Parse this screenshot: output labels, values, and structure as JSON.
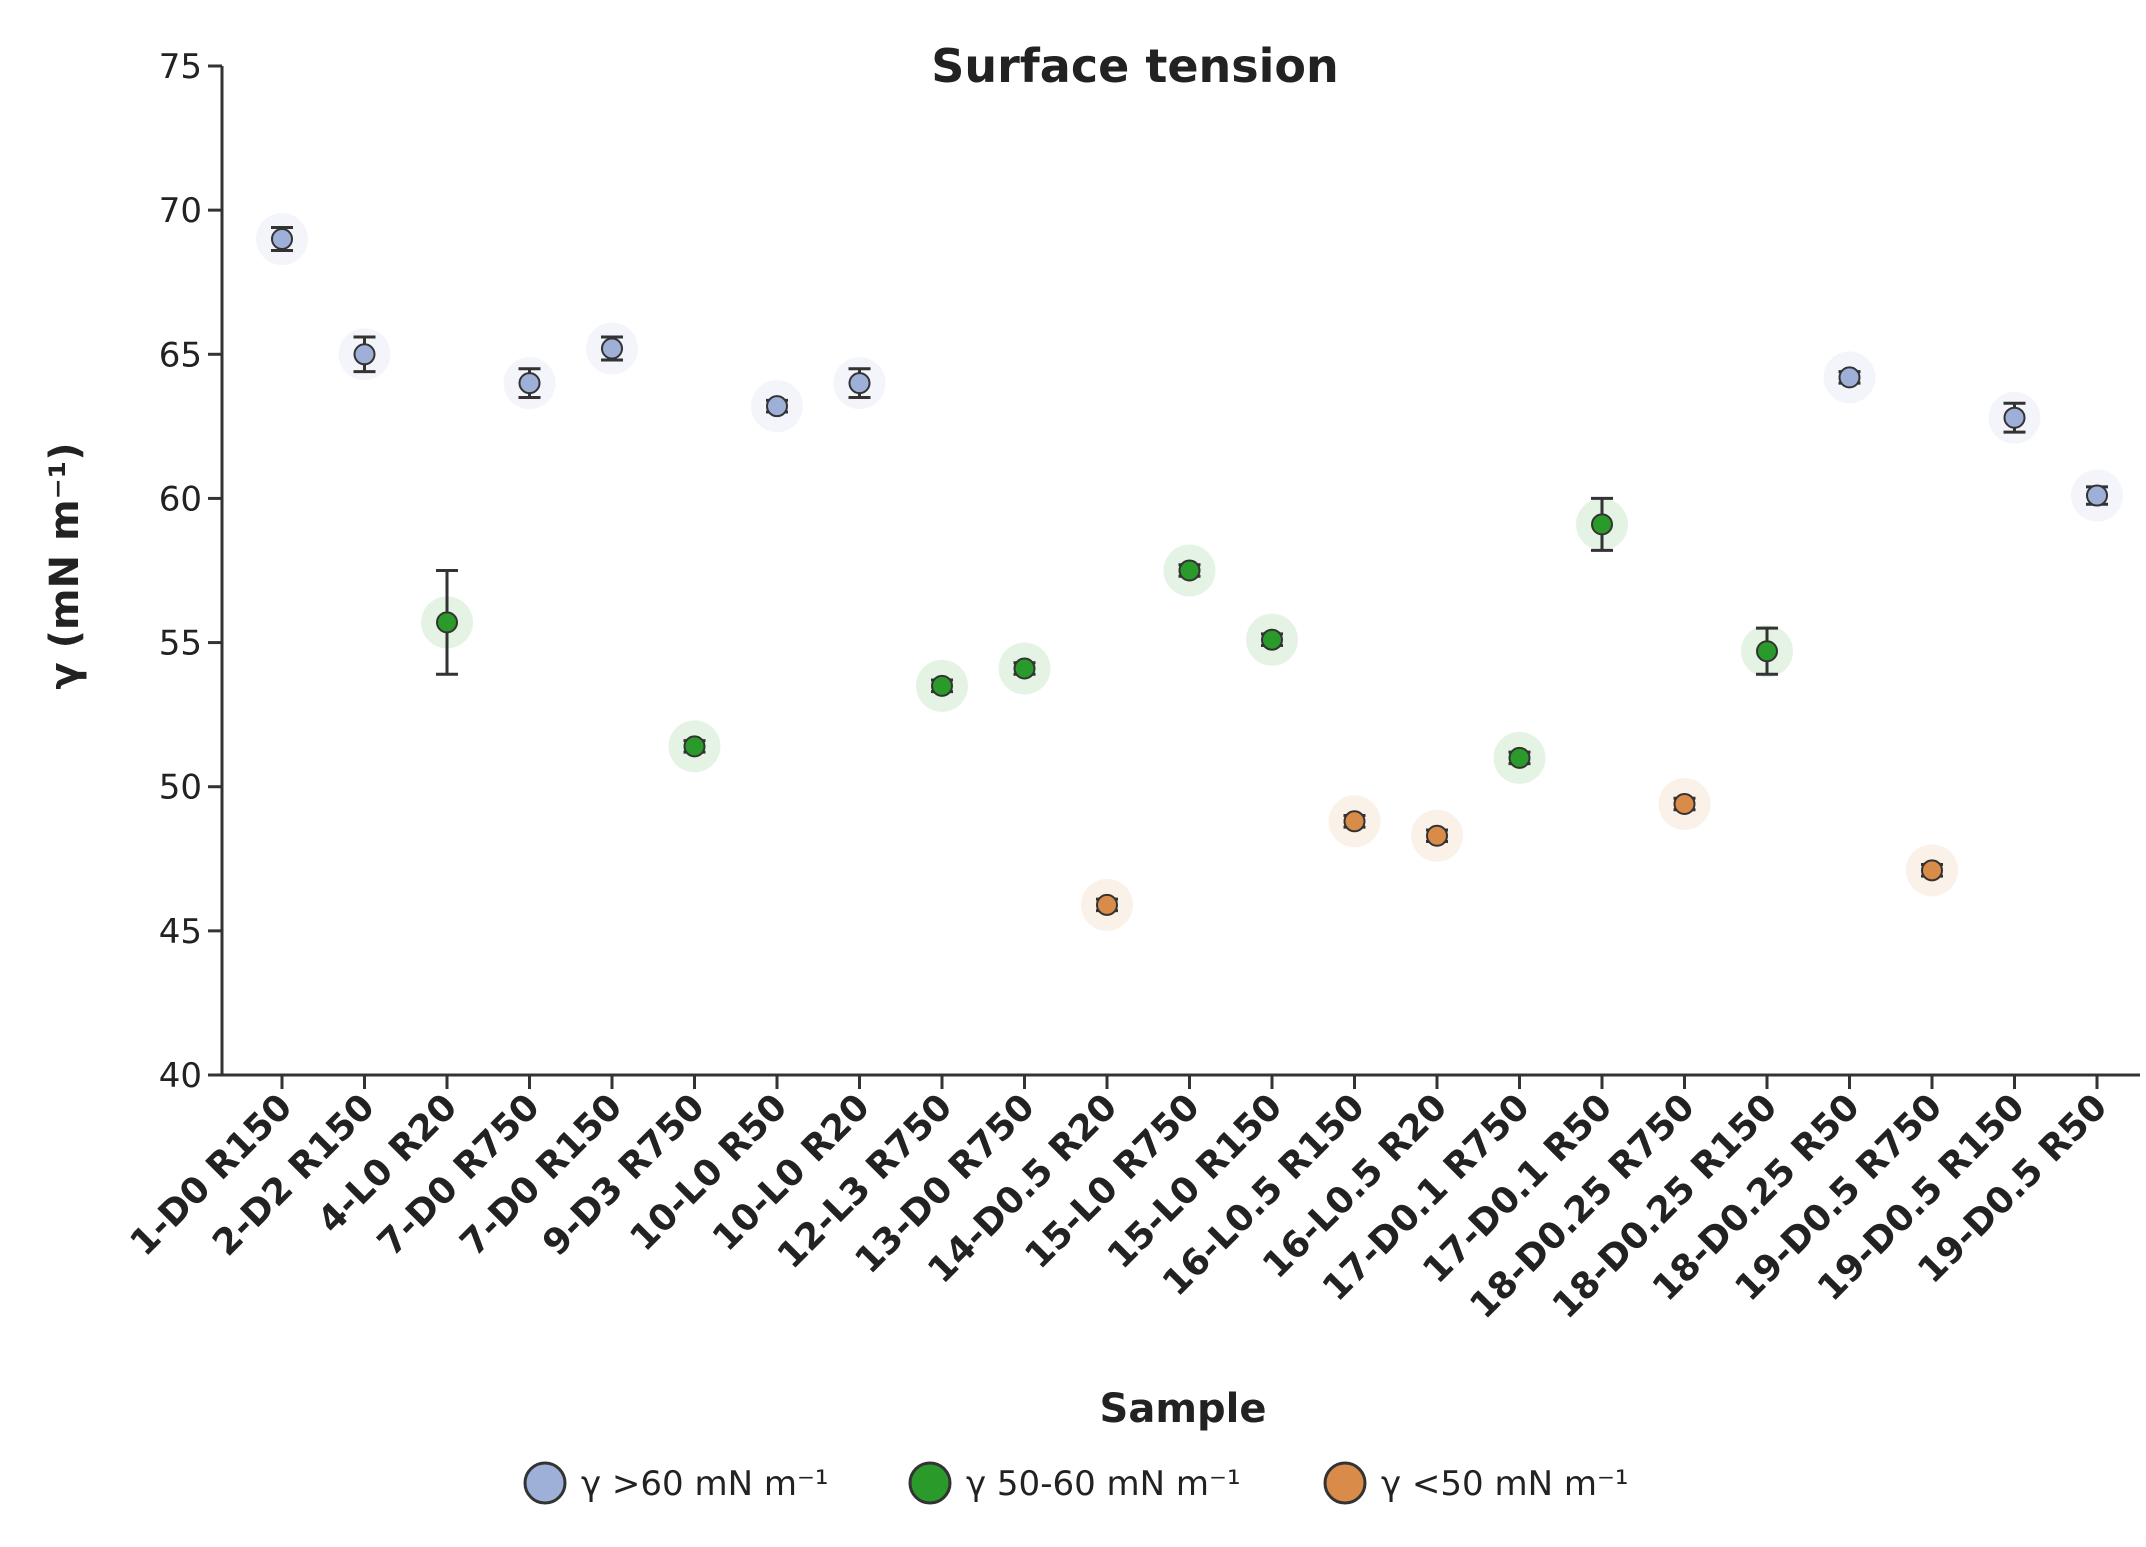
{
  "chart_data": {
    "type": "scatter",
    "title": "Surface tension",
    "xlabel": "Sample",
    "ylabel": "γ (mN m⁻¹)",
    "ylim": [
      40,
      75
    ],
    "yticks": [
      40,
      45,
      50,
      55,
      60,
      65,
      70,
      75
    ],
    "grid": false,
    "legend_position": "bottom",
    "categories": [
      "1-D0 R150",
      "2-D2 R150",
      "4-L0 R20",
      "7-D0 R750",
      "7-D0 R150",
      "9-D3 R750",
      "10-L0 R50",
      "10-L0 R20",
      "12-L3 R750",
      "13-D0 R750",
      "14-D0.5 R20",
      "15-L0 R750",
      "15-L0 R150",
      "16-L0.5 R150",
      "16-L0.5 R20",
      "17-D0.1 R750",
      "17-D0.1 R50",
      "18-D0.25 R750",
      "18-D0.25 R150",
      "18-D0.25 R50",
      "19-D0.5 R750",
      "19-D0.5 R150",
      "19-D0.5 R50"
    ],
    "values": [
      69.0,
      65.0,
      55.7,
      64.0,
      65.2,
      51.4,
      63.2,
      64.0,
      53.5,
      54.1,
      45.9,
      57.5,
      55.1,
      48.8,
      48.3,
      51.0,
      59.1,
      49.4,
      54.7,
      64.2,
      47.1,
      62.8,
      60.1
    ],
    "errors": [
      0.4,
      0.6,
      1.8,
      0.5,
      0.4,
      0.2,
      0.2,
      0.5,
      0.2,
      0.2,
      0.2,
      0.2,
      0.2,
      0.2,
      0.2,
      0.2,
      0.9,
      0.2,
      0.8,
      0.2,
      0.2,
      0.5,
      0.3
    ],
    "groups": [
      "high",
      "high",
      "mid",
      "high",
      "high",
      "mid",
      "high",
      "high",
      "mid",
      "mid",
      "low",
      "mid",
      "mid",
      "low",
      "low",
      "mid",
      "mid",
      "low",
      "mid",
      "high",
      "low",
      "high",
      "high"
    ],
    "series": [
      {
        "key": "high",
        "name": "γ >60 mN m⁻¹",
        "color": "#9eb0d8"
      },
      {
        "key": "mid",
        "name": "γ 50-60 mN m⁻¹",
        "color": "#2a9a2a"
      },
      {
        "key": "low",
        "name": "γ <50 mN m⁻¹",
        "color": "#d98c4a"
      }
    ]
  }
}
